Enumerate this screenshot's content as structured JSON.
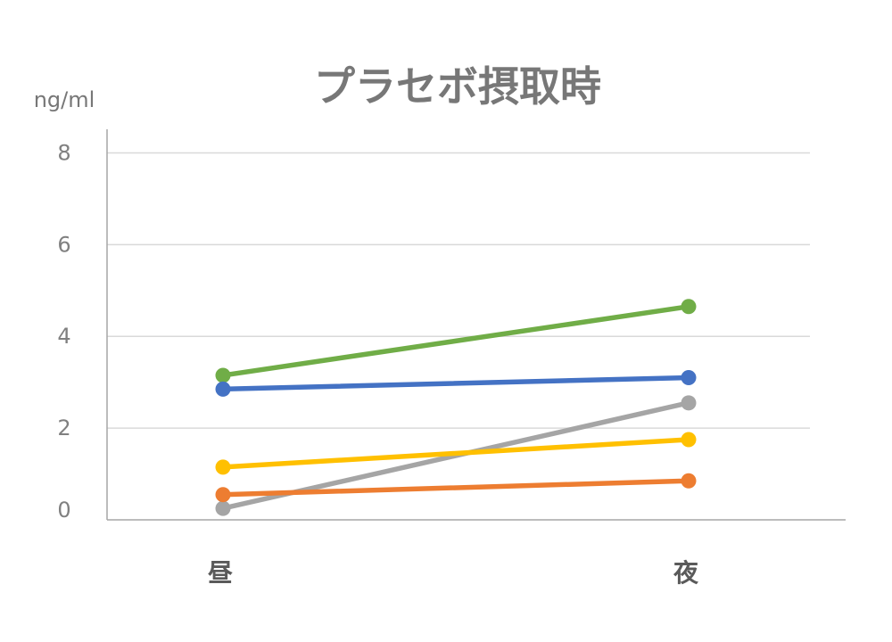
{
  "chart_data": {
    "type": "line",
    "title": "プラセボ摂取時",
    "ylabel": "ng/ml",
    "categories": [
      "昼",
      "夜"
    ],
    "ylim": [
      0,
      9
    ],
    "yticks": [
      0,
      2,
      4,
      6,
      8
    ],
    "ytick_labels": [
      "0",
      "2",
      "4",
      "6",
      "8"
    ],
    "grid": true,
    "legend": "none",
    "series": [
      {
        "color": "#70AD47",
        "values": [
          3.15,
          4.65
        ]
      },
      {
        "color": "#4472C4",
        "values": [
          2.85,
          3.1
        ]
      },
      {
        "color": "#A5A5A5",
        "values": [
          0.25,
          2.55
        ]
      },
      {
        "color": "#FFC000",
        "values": [
          1.15,
          1.75
        ]
      },
      {
        "color": "#ED7D31",
        "values": [
          0.55,
          0.85
        ]
      }
    ]
  }
}
